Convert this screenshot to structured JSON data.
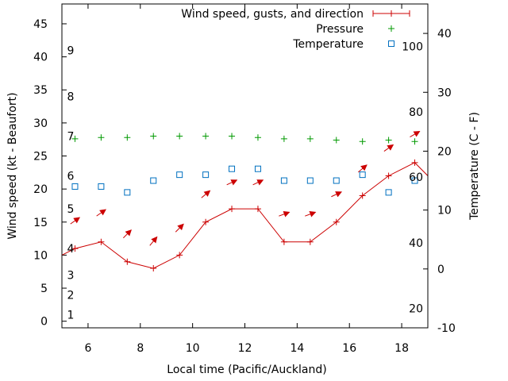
{
  "chart_data": {
    "type": "line",
    "xlabel": "Local time (Pacific/Auckland)",
    "ylabel": "Wind speed (kt - Beaufort)",
    "y2label": "Temperature (C - F)",
    "xlim": [
      5,
      19
    ],
    "ylim": [
      -1,
      48
    ],
    "y2lim": [
      -10,
      45
    ],
    "x_ticks": [
      6,
      8,
      10,
      12,
      14,
      16,
      18
    ],
    "y_ticks": [
      0,
      5,
      10,
      15,
      20,
      25,
      30,
      35,
      40,
      45
    ],
    "y2_ticks": [
      -10,
      0,
      10,
      20,
      30,
      40
    ],
    "beaufort_labels": [
      {
        "label": "1",
        "wind_kt": 1
      },
      {
        "label": "2",
        "wind_kt": 4
      },
      {
        "label": "3",
        "wind_kt": 7
      },
      {
        "label": "4",
        "wind_kt": 11
      },
      {
        "label": "5",
        "wind_kt": 17
      },
      {
        "label": "6",
        "wind_kt": 22
      },
      {
        "label": "7",
        "wind_kt": 28
      },
      {
        "label": "8",
        "wind_kt": 34
      },
      {
        "label": "9",
        "wind_kt": 41
      }
    ],
    "fahrenheit_labels": [
      {
        "label": "20",
        "temp_c": -6.7
      },
      {
        "label": "40",
        "temp_c": 4.4
      },
      {
        "label": "60",
        "temp_c": 15.6
      },
      {
        "label": "80",
        "temp_c": 26.7
      },
      {
        "label": "100",
        "temp_c": 37.8
      }
    ],
    "legend": [
      {
        "label": "Wind speed, gusts, and direction",
        "color": "#cc0000"
      },
      {
        "label": "Pressure",
        "color": "#009900"
      },
      {
        "label": "Temperature",
        "color": "#0070c0"
      }
    ],
    "series": [
      {
        "name": "Wind speed",
        "color": "#cc0000",
        "x": [
          5,
          5.5,
          6.5,
          7.5,
          8.5,
          9.5,
          10.5,
          11.5,
          12.5,
          13.5,
          14.5,
          15.5,
          16.5,
          17.5,
          18.5,
          19
        ],
        "y": [
          10,
          11,
          12,
          9,
          8,
          10,
          15,
          17,
          17,
          12,
          12,
          15,
          19,
          22,
          24,
          22
        ]
      },
      {
        "name": "Wind gusts and direction",
        "color": "#cc0000",
        "arrows": [
          {
            "x": 5.5,
            "y": 15.2,
            "direction_deg": 55
          },
          {
            "x": 6.5,
            "y": 16.4,
            "direction_deg": 55
          },
          {
            "x": 7.5,
            "y": 13.2,
            "direction_deg": 45
          },
          {
            "x": 8.5,
            "y": 12.1,
            "direction_deg": 40
          },
          {
            "x": 9.5,
            "y": 14.1,
            "direction_deg": 45
          },
          {
            "x": 10.5,
            "y": 19.2,
            "direction_deg": 50
          },
          {
            "x": 11.5,
            "y": 21.0,
            "direction_deg": 65
          },
          {
            "x": 12.5,
            "y": 21.0,
            "direction_deg": 65
          },
          {
            "x": 13.5,
            "y": 16.2,
            "direction_deg": 70
          },
          {
            "x": 14.5,
            "y": 16.2,
            "direction_deg": 70
          },
          {
            "x": 15.5,
            "y": 19.2,
            "direction_deg": 65
          },
          {
            "x": 16.5,
            "y": 23.1,
            "direction_deg": 50
          },
          {
            "x": 17.5,
            "y": 26.2,
            "direction_deg": 55
          },
          {
            "x": 18.5,
            "y": 28.3,
            "direction_deg": 60
          }
        ]
      },
      {
        "name": "Pressure",
        "color": "#009900",
        "axis": "left",
        "x": [
          5.5,
          6.5,
          7.5,
          8.5,
          9.5,
          10.5,
          11.5,
          12.5,
          13.5,
          14.5,
          15.5,
          16.5,
          17.5,
          18.5
        ],
        "y": [
          27.6,
          27.8,
          27.8,
          28.0,
          28.0,
          28.0,
          28.0,
          27.8,
          27.6,
          27.6,
          27.4,
          27.2,
          27.4,
          27.2
        ]
      },
      {
        "name": "Temperature",
        "color": "#0070c0",
        "axis": "right",
        "x": [
          5.5,
          6.5,
          7.5,
          8.5,
          9.5,
          10.5,
          11.5,
          12.5,
          13.5,
          14.5,
          15.5,
          16.5,
          17.5,
          18.5
        ],
        "y": [
          14,
          14,
          13,
          15,
          16,
          16,
          17,
          17,
          15,
          15,
          15,
          16,
          13,
          15
        ]
      }
    ]
  }
}
